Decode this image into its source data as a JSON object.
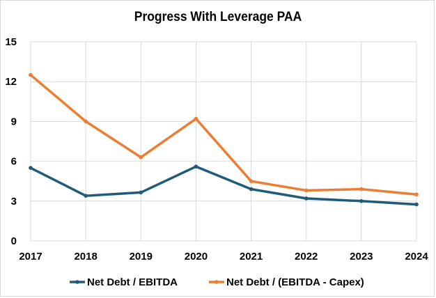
{
  "chart_data": {
    "type": "line",
    "title": "Progress With Leverage PAA",
    "xlabel": "",
    "ylabel": "",
    "categories": [
      "2017",
      "2018",
      "2019",
      "2020",
      "2021",
      "2022",
      "2023",
      "2024"
    ],
    "ylim": [
      0,
      15
    ],
    "yticks": [
      0,
      3,
      6,
      9,
      12,
      15
    ],
    "grid": true,
    "legend_position": "bottom",
    "series": [
      {
        "name": "Net Debt / EBITDA",
        "color": "#1f5c7a",
        "values": [
          5.5,
          3.4,
          3.65,
          5.6,
          3.9,
          3.2,
          3.0,
          2.75
        ]
      },
      {
        "name": "Net Debt / (EBITDA - Capex)",
        "color": "#ed7d31",
        "values": [
          12.5,
          9.0,
          6.3,
          9.2,
          4.5,
          3.8,
          3.9,
          3.5
        ]
      }
    ]
  }
}
